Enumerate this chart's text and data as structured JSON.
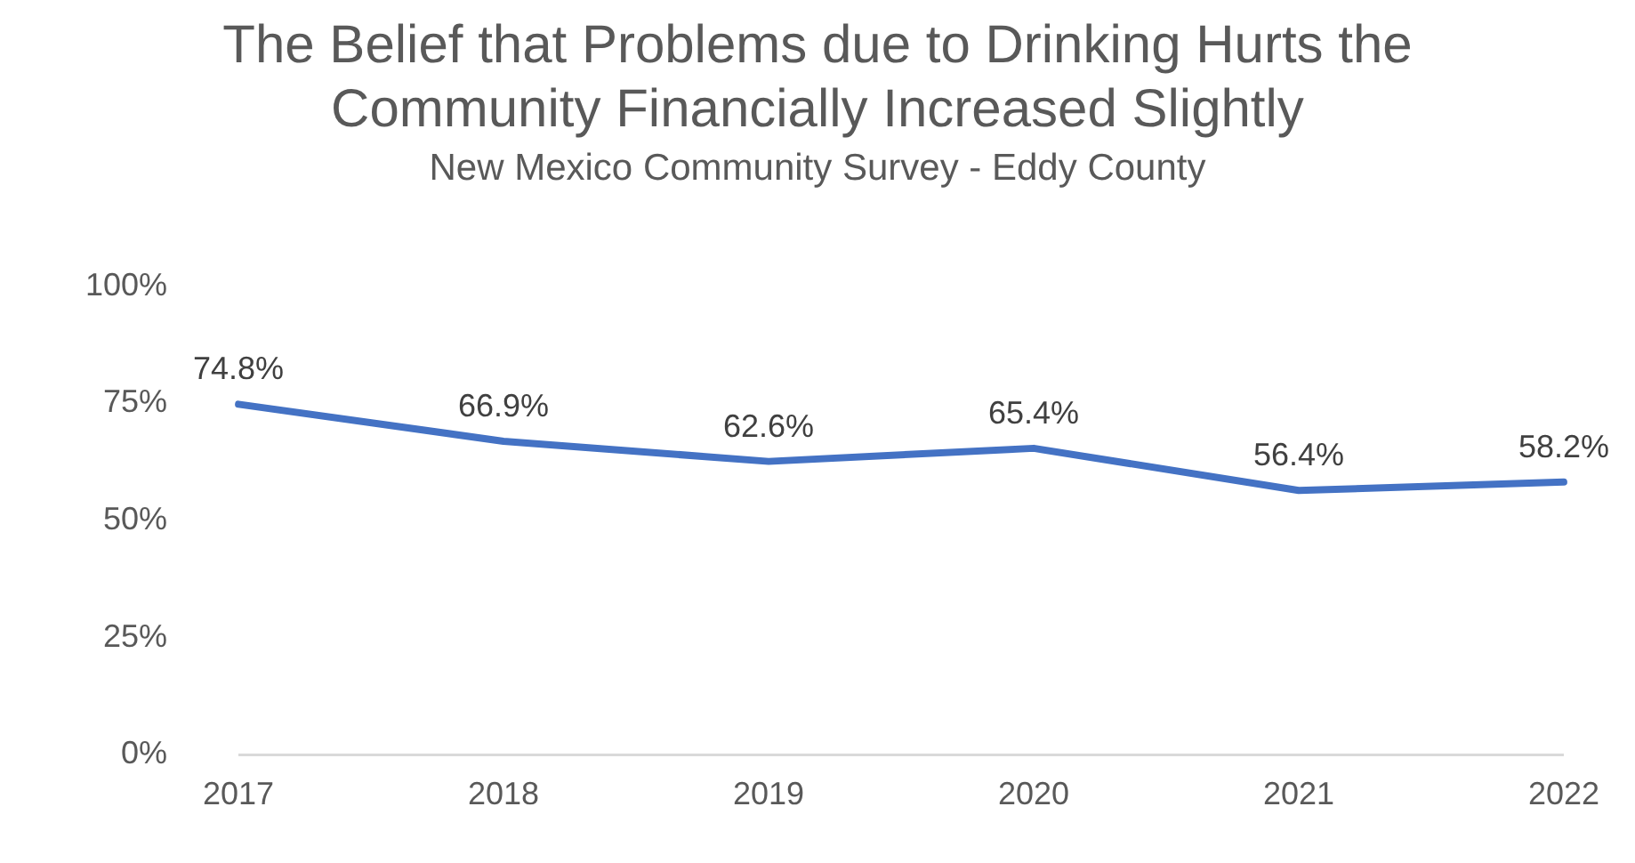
{
  "chart_data": {
    "type": "line",
    "title": "The Belief that Problems due to Drinking Hurts the Community Financially Increased Slightly",
    "subtitle": "New Mexico Community Survey - Eddy County",
    "categories": [
      "2017",
      "2018",
      "2019",
      "2020",
      "2021",
      "2022"
    ],
    "series": [
      {
        "color": "#4472c4",
        "values": [
          74.8,
          66.9,
          62.6,
          65.4,
          56.4,
          58.2
        ],
        "value_labels": [
          "74.8%",
          "66.9%",
          "62.6%",
          "65.4%",
          "56.4%",
          "58.2%"
        ]
      }
    ],
    "ylim": [
      0,
      100
    ],
    "yticks": [
      {
        "value": 0,
        "label": "0%"
      },
      {
        "value": 25,
        "label": "25%"
      },
      {
        "value": 50,
        "label": "50%"
      },
      {
        "value": 75,
        "label": "75%"
      },
      {
        "value": 100,
        "label": "100%"
      }
    ],
    "grid": false,
    "legend": false,
    "marker": "none",
    "line_style": "solid"
  }
}
